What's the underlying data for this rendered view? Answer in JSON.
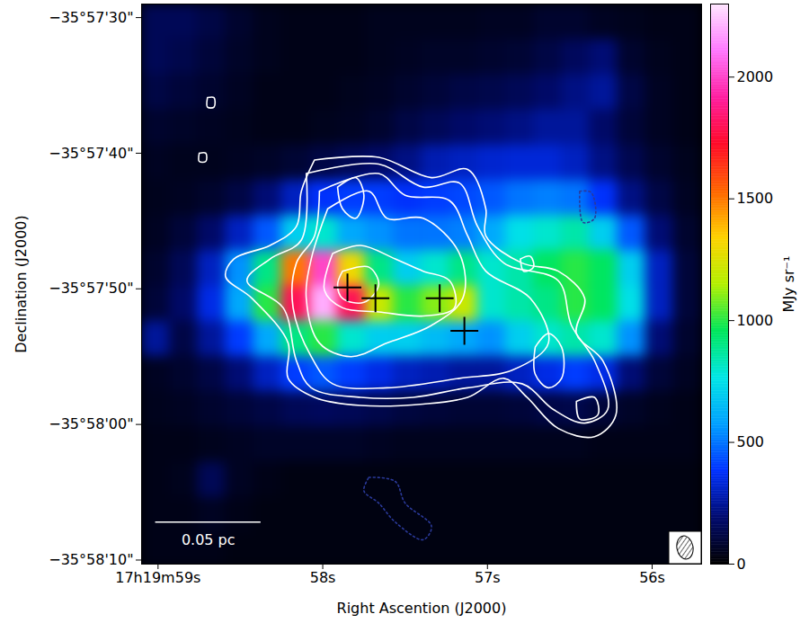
{
  "chart_data": {
    "type": "heatmap",
    "x_label": "Right Ascention (J2000)",
    "y_label": "Declination (J2000)",
    "xlim": [
      62399.1,
      62395.7
    ],
    "xticks": [
      {
        "value": 62399,
        "label": "17h19m59s"
      },
      {
        "value": 62398,
        "label": "58s"
      },
      {
        "value": 62397,
        "label": "57s"
      },
      {
        "value": 62396,
        "label": "56s"
      }
    ],
    "ylim": [
      -129490.3,
      -129449
    ],
    "yticks": [
      {
        "value": -129450,
        "label": "−35°57'30\""
      },
      {
        "value": -129460,
        "label": "−35°57'40\""
      },
      {
        "value": -129470,
        "label": "−35°57'50\""
      },
      {
        "value": -129480,
        "label": "−35°58'00\""
      },
      {
        "value": -129490,
        "label": "−35°58'10\""
      }
    ],
    "colorbar": {
      "range": [
        0,
        2300
      ],
      "ticks": [
        0,
        500,
        1000,
        1500,
        2000
      ],
      "label": "MJy sr⁻¹"
    },
    "image": {
      "x_edges": [
        62399.1,
        62398.93,
        62398.76,
        62398.59,
        62398.42,
        62398.25,
        62398.08,
        62397.91,
        62397.74,
        62397.57,
        62397.4,
        62397.23,
        62397.06,
        62396.89,
        62396.72,
        62396.55,
        62396.38,
        62396.21,
        62396.04,
        62395.87,
        62395.7
      ],
      "y_edges": [
        -129449.0,
        -129451.6,
        -129454.2,
        -129456.8,
        -129459.4,
        -129462.0,
        -129464.6,
        -129467.2,
        -129469.8,
        -129472.4,
        -129475.0,
        -129477.6,
        -129480.2,
        -129482.8,
        -129485.4,
        -129488.0,
        -129490.6
      ],
      "values": [
        [
          150,
          150,
          120,
          80,
          50,
          40,
          40,
          40,
          50,
          50,
          50,
          50,
          60,
          60,
          80,
          80,
          60,
          50,
          40,
          40
        ],
        [
          150,
          130,
          100,
          70,
          50,
          40,
          40,
          40,
          50,
          60,
          70,
          70,
          80,
          90,
          120,
          160,
          200,
          80,
          50,
          40
        ],
        [
          120,
          100,
          80,
          60,
          40,
          40,
          40,
          50,
          60,
          80,
          100,
          120,
          130,
          150,
          180,
          220,
          250,
          120,
          60,
          40
        ],
        [
          80,
          70,
          60,
          50,
          40,
          40,
          50,
          60,
          80,
          120,
          150,
          180,
          200,
          220,
          250,
          250,
          180,
          100,
          60,
          40
        ],
        [
          60,
          50,
          50,
          60,
          70,
          90,
          120,
          150,
          180,
          220,
          280,
          300,
          320,
          330,
          330,
          300,
          220,
          140,
          80,
          50
        ],
        [
          50,
          60,
          80,
          120,
          200,
          300,
          380,
          400,
          400,
          380,
          400,
          420,
          450,
          500,
          520,
          500,
          380,
          220,
          120,
          60
        ],
        [
          60,
          100,
          180,
          300,
          450,
          700,
          800,
          600,
          550,
          500,
          500,
          520,
          600,
          750,
          800,
          850,
          700,
          450,
          200,
          80
        ],
        [
          80,
          150,
          300,
          550,
          900,
          1500,
          2000,
          1300,
          900,
          700,
          800,
          900,
          800,
          850,
          950,
          1000,
          950,
          700,
          300,
          100
        ],
        [
          100,
          180,
          350,
          600,
          1000,
          1800,
          2200,
          1800,
          1200,
          1000,
          1100,
          1200,
          800,
          850,
          900,
          1000,
          950,
          750,
          300,
          100
        ],
        [
          250,
          120,
          250,
          400,
          600,
          900,
          1000,
          800,
          700,
          700,
          650,
          600,
          550,
          700,
          800,
          850,
          800,
          550,
          200,
          80
        ],
        [
          60,
          80,
          120,
          200,
          300,
          400,
          450,
          400,
          350,
          300,
          280,
          250,
          250,
          300,
          350,
          400,
          350,
          200,
          100,
          60
        ],
        [
          50,
          60,
          80,
          100,
          120,
          150,
          160,
          150,
          130,
          110,
          100,
          90,
          90,
          100,
          120,
          130,
          100,
          70,
          50,
          40
        ],
        [
          40,
          40,
          50,
          60,
          70,
          70,
          70,
          70,
          60,
          50,
          50,
          50,
          50,
          50,
          50,
          50,
          40,
          40,
          40,
          40
        ],
        [
          40,
          50,
          150,
          60,
          40,
          30,
          30,
          30,
          30,
          30,
          30,
          30,
          30,
          30,
          30,
          30,
          30,
          30,
          30,
          30
        ],
        [
          40,
          40,
          60,
          40,
          30,
          30,
          30,
          30,
          30,
          30,
          30,
          30,
          30,
          30,
          30,
          30,
          30,
          30,
          30,
          30
        ],
        [
          40,
          40,
          40,
          30,
          30,
          30,
          30,
          30,
          30,
          30,
          30,
          30,
          30,
          30,
          30,
          30,
          30,
          30,
          30,
          30
        ]
      ]
    },
    "contours": [
      {
        "color": "#ffffff",
        "line_style": "solid",
        "paths": [
          [
            [
              62398.05,
              -129460.5
            ],
            [
              62397.66,
              -129460.3
            ],
            [
              62397.34,
              -129461.8
            ],
            [
              62397.12,
              -129461.2
            ],
            [
              62397.01,
              -129464.1
            ],
            [
              62397.01,
              -129466.1
            ],
            [
              62396.79,
              -129468.1
            ],
            [
              62396.57,
              -129468.7
            ],
            [
              62396.41,
              -129470.7
            ],
            [
              62396.46,
              -129473.3
            ],
            [
              62396.3,
              -129475.3
            ],
            [
              62396.22,
              -129479.3
            ],
            [
              62396.35,
              -129480.9
            ],
            [
              62396.57,
              -129480.3
            ],
            [
              62396.76,
              -129478.0
            ],
            [
              62396.9,
              -129476.6
            ],
            [
              62397.12,
              -129478.0
            ],
            [
              62397.39,
              -129478.5
            ],
            [
              62397.77,
              -129478.6
            ],
            [
              62398.05,
              -129478.0
            ],
            [
              62398.21,
              -129476.6
            ],
            [
              62398.21,
              -129474.0
            ],
            [
              62398.43,
              -129470.7
            ],
            [
              62398.59,
              -129469.1
            ],
            [
              62398.54,
              -129467.8
            ],
            [
              62398.32,
              -129466.8
            ],
            [
              62398.16,
              -129465.4
            ],
            [
              62398.13,
              -129462.8
            ],
            [
              62398.05,
              -129460.5
            ]
          ],
          [
            [
              62398.1,
              -129461.5
            ],
            [
              62397.66,
              -129460.8
            ],
            [
              62397.39,
              -129462.5
            ],
            [
              62397.17,
              -129462.2
            ],
            [
              62397.06,
              -129465.4
            ],
            [
              62396.9,
              -129468.1
            ],
            [
              62396.57,
              -129469.4
            ],
            [
              62396.49,
              -129472.7
            ],
            [
              62396.35,
              -129475.3
            ],
            [
              62396.27,
              -129478.9
            ],
            [
              62396.41,
              -129479.9
            ],
            [
              62396.6,
              -129478.9
            ],
            [
              62396.79,
              -129477.0
            ],
            [
              62397.12,
              -129477.3
            ],
            [
              62397.45,
              -129478.0
            ],
            [
              62397.77,
              -129478.0
            ],
            [
              62398.07,
              -129477.3
            ],
            [
              62398.16,
              -129475.3
            ],
            [
              62398.24,
              -129471.4
            ],
            [
              62398.46,
              -129469.4
            ],
            [
              62398.32,
              -129467.8
            ],
            [
              62398.13,
              -129466.4
            ],
            [
              62398.1,
              -129461.5
            ]
          ],
          [
            [
              62398.02,
              -129462.8
            ],
            [
              62397.66,
              -129461.5
            ],
            [
              62397.5,
              -129463.1
            ],
            [
              62397.23,
              -129463.5
            ],
            [
              62397.12,
              -129466.1
            ],
            [
              62397.01,
              -129468.7
            ],
            [
              62396.74,
              -129470.7
            ],
            [
              62396.63,
              -129474.0
            ],
            [
              62396.85,
              -129476.0
            ],
            [
              62397.17,
              -129476.6
            ],
            [
              62397.61,
              -129477.3
            ],
            [
              62397.94,
              -129477.0
            ],
            [
              62398.07,
              -129475.0
            ],
            [
              62398.18,
              -129471.4
            ],
            [
              62398.16,
              -129468.1
            ],
            [
              62398.05,
              -129466.1
            ],
            [
              62398.02,
              -129462.8
            ]
          ],
          [
            [
              62397.97,
              -129464.1
            ],
            [
              62397.72,
              -129462.8
            ],
            [
              62397.61,
              -129464.8
            ],
            [
              62397.39,
              -129464.8
            ],
            [
              62397.17,
              -129467.4
            ],
            [
              62397.15,
              -129470.7
            ],
            [
              62397.34,
              -129472.7
            ],
            [
              62397.61,
              -129474.0
            ],
            [
              62397.83,
              -129475.0
            ],
            [
              62398.02,
              -129474.0
            ],
            [
              62398.1,
              -129470.7
            ],
            [
              62398.07,
              -129467.8
            ],
            [
              62397.97,
              -129464.1
            ]
          ],
          [
            [
              62397.94,
              -129467.4
            ],
            [
              62397.77,
              -129466.8
            ],
            [
              62397.56,
              -129467.8
            ],
            [
              62397.39,
              -129468.7
            ],
            [
              62397.23,
              -129469.4
            ],
            [
              62397.2,
              -129471.4
            ],
            [
              62397.39,
              -129472.0
            ],
            [
              62397.66,
              -129471.7
            ],
            [
              62397.88,
              -129471.4
            ],
            [
              62397.99,
              -129470.1
            ],
            [
              62397.94,
              -129467.4
            ]
          ],
          [
            [
              62397.88,
              -129468.7
            ],
            [
              62397.72,
              -129468.4
            ],
            [
              62397.66,
              -129469.7
            ],
            [
              62397.75,
              -129471.0
            ],
            [
              62397.88,
              -129470.7
            ],
            [
              62397.91,
              -129469.7
            ],
            [
              62397.88,
              -129468.7
            ]
          ],
          [
            [
              62396.71,
              -129474.3
            ],
            [
              62396.63,
              -129473.3
            ],
            [
              62396.55,
              -129474.3
            ],
            [
              62396.55,
              -129476.6
            ],
            [
              62396.63,
              -129477.3
            ],
            [
              62396.71,
              -129476.3
            ],
            [
              62396.71,
              -129474.3
            ]
          ],
          [
            [
              62396.46,
              -129478.3
            ],
            [
              62396.35,
              -129478.0
            ],
            [
              62396.33,
              -129479.3
            ],
            [
              62396.44,
              -129479.6
            ],
            [
              62396.46,
              -129478.3
            ]
          ],
          [
            [
              62397.91,
              -129462.5
            ],
            [
              62397.8,
              -129461.8
            ],
            [
              62397.75,
              -129463.1
            ],
            [
              62397.8,
              -129464.8
            ],
            [
              62397.88,
              -129464.1
            ],
            [
              62397.91,
              -129462.5
            ]
          ],
          [
            [
              62396.8,
              -129467.8
            ],
            [
              62396.74,
              -129467.6
            ],
            [
              62396.72,
              -129468.4
            ],
            [
              62396.78,
              -129468.7
            ],
            [
              62396.8,
              -129467.8
            ]
          ],
          [
            [
              62398.7,
              -129455.9
            ],
            [
              62398.66,
              -129455.9
            ],
            [
              62398.66,
              -129456.6
            ],
            [
              62398.7,
              -129456.6
            ],
            [
              62398.7,
              -129455.9
            ]
          ],
          [
            [
              62398.75,
              -129460.0
            ],
            [
              62398.71,
              -129460.0
            ],
            [
              62398.71,
              -129460.6
            ],
            [
              62398.75,
              -129460.6
            ],
            [
              62398.75,
              -129460.0
            ]
          ]
        ]
      },
      {
        "color": "#2a3a9a",
        "line_style": "dotted",
        "paths": [
          [
            [
              62396.44,
              -129462.8
            ],
            [
              62396.37,
              -129462.9
            ],
            [
              62396.35,
              -129464.8
            ],
            [
              62396.42,
              -129465.1
            ],
            [
              62396.44,
              -129462.8
            ]
          ],
          [
            [
              62397.72,
              -129483.9
            ],
            [
              62397.56,
              -129484.2
            ],
            [
              62397.5,
              -129485.8
            ],
            [
              62397.34,
              -129487.5
            ],
            [
              62397.39,
              -129488.5
            ],
            [
              62397.56,
              -129487.2
            ],
            [
              62397.66,
              -129485.8
            ],
            [
              62397.75,
              -129484.9
            ],
            [
              62397.72,
              -129483.9
            ]
          ]
        ]
      }
    ],
    "sources": {
      "x": [
        62397.85,
        62397.68,
        62397.29,
        62397.14
      ],
      "y": [
        -129469.9,
        -129470.7,
        -129470.7,
        -129473.1
      ],
      "marker": "plus",
      "color": "#000000"
    },
    "scale_bar": {
      "label": "0.05 pc",
      "length": 0.64,
      "color": "#ffffff"
    }
  }
}
